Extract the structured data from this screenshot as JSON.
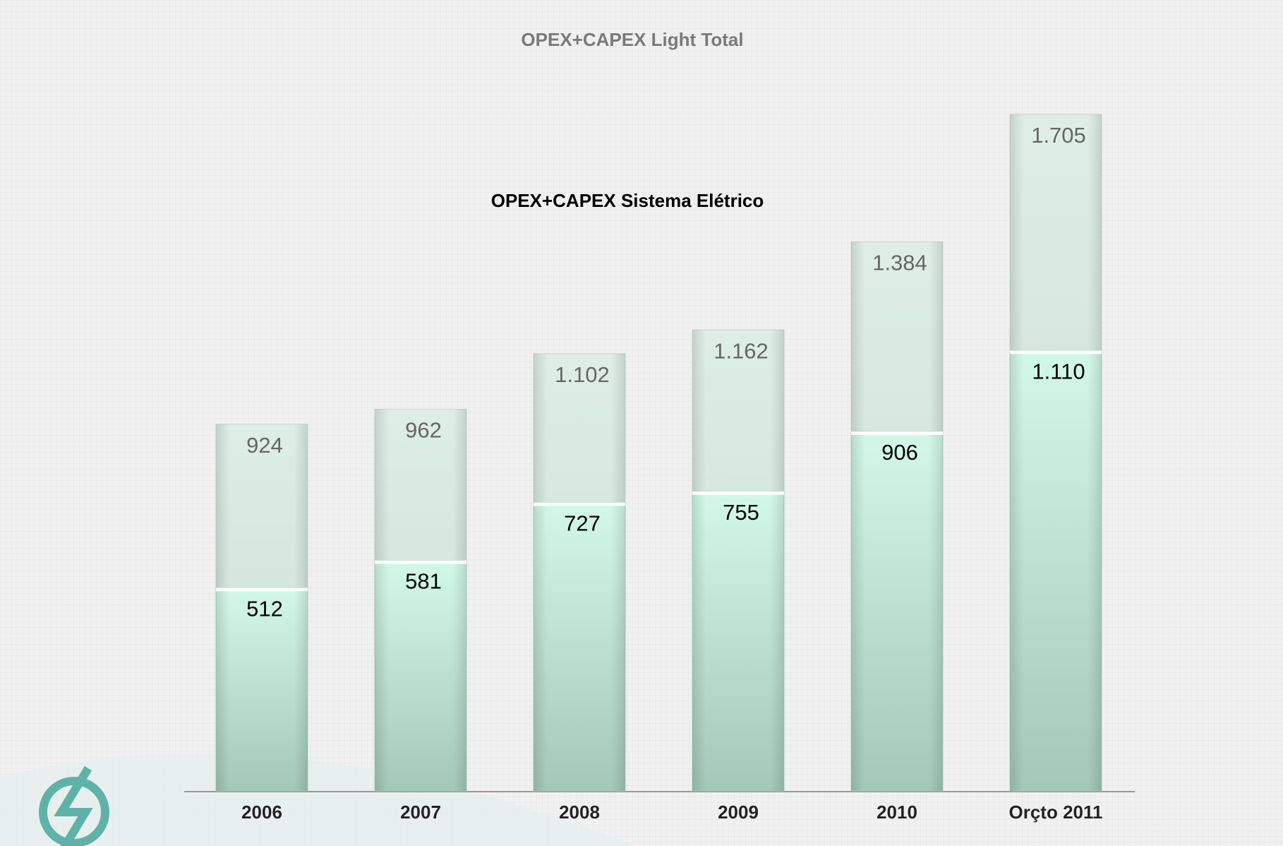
{
  "chart_data": {
    "type": "overlapped-bar",
    "categories": [
      "2006",
      "2007",
      "2008",
      "2009",
      "2010",
      "Orçto 2011"
    ],
    "series": [
      {
        "name": "OPEX+CAPEX Light Total",
        "color": "#d3e4dc",
        "values": [
          924,
          962,
          1102,
          1162,
          1384,
          1705
        ],
        "value_labels": [
          "924",
          "962",
          "1.102",
          "1.162",
          "1.384",
          "1.705"
        ]
      },
      {
        "name": "OPEX+CAPEX Sistema Elétrico",
        "color": "#bfe9d6",
        "values": [
          512,
          581,
          727,
          755,
          906,
          1110
        ],
        "value_labels": [
          "512",
          "581",
          "727",
          "755",
          "906",
          "1.110"
        ]
      }
    ]
  }
}
